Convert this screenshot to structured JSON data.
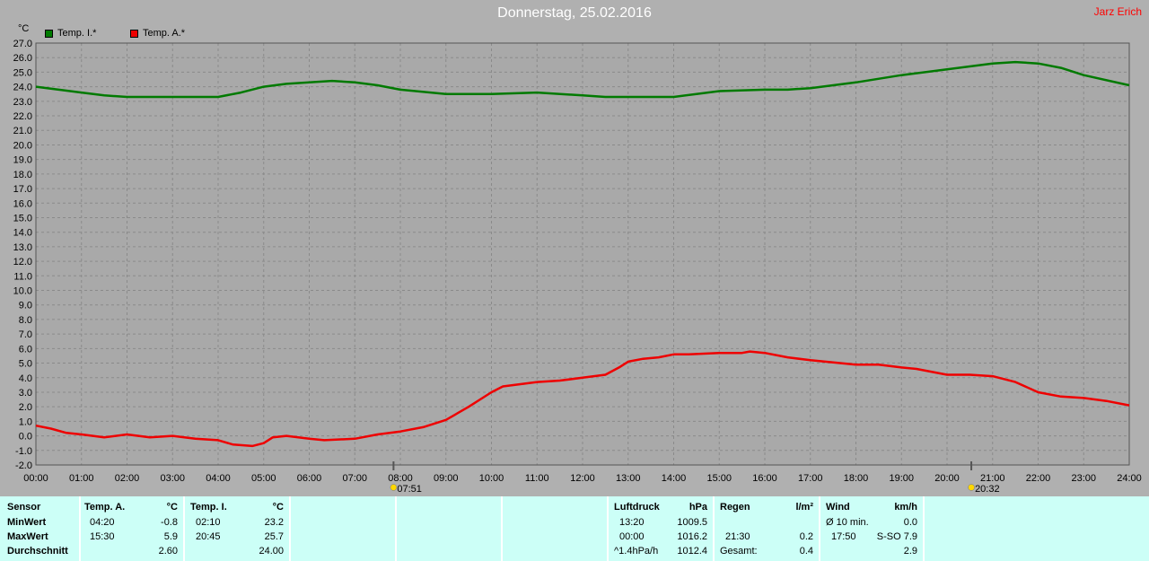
{
  "title": "Donnerstag, 25.02.2016",
  "author": "Jarz Erich",
  "unit": "°C",
  "colors": {
    "plot_bg": "#a9a9a9",
    "grid": "#8a8a8a",
    "inside": "#007a00",
    "outside": "#ee0000",
    "panel": "#ccfff7"
  },
  "legend": [
    {
      "label": "Temp. I.*",
      "color": "#007a00"
    },
    {
      "label": "Temp. A.*",
      "color": "#ee0000"
    }
  ],
  "sun": {
    "sunrise": "07:51",
    "sunset": "20:32"
  },
  "chart_data": {
    "type": "line",
    "xlabel": "",
    "ylabel": "°C",
    "xlim": [
      0,
      24
    ],
    "ylim": [
      -2,
      27
    ],
    "y_step": 1,
    "grid": true,
    "x_ticks": [
      "00:00",
      "01:00",
      "02:00",
      "03:00",
      "04:00",
      "05:00",
      "06:00",
      "07:00",
      "08:00",
      "09:00",
      "10:00",
      "11:00",
      "12:00",
      "13:00",
      "14:00",
      "15:00",
      "16:00",
      "17:00",
      "18:00",
      "19:00",
      "20:00",
      "21:00",
      "22:00",
      "23:00",
      "24:00"
    ],
    "y_ticks": [
      "27.0",
      "26.0",
      "25.0",
      "24.0",
      "23.0",
      "22.0",
      "21.0",
      "20.0",
      "19.0",
      "18.0",
      "17.0",
      "16.0",
      "15.0",
      "14.0",
      "13.0",
      "12.0",
      "11.0",
      "10.0",
      "9.0",
      "8.0",
      "7.0",
      "6.0",
      "5.0",
      "4.0",
      "3.0",
      "2.0",
      "1.0",
      "0.0",
      "-1.0",
      "-2.0"
    ],
    "series": [
      {
        "name": "Temp. I.*",
        "x": [
          0,
          1,
          1.5,
          2,
          3,
          4,
          4.5,
          5,
          5.5,
          6,
          6.5,
          7,
          7.5,
          8,
          9,
          10,
          11,
          12,
          12.5,
          13,
          14,
          14.5,
          15,
          16,
          16.5,
          17,
          18,
          19,
          20,
          21,
          21.5,
          22,
          22.5,
          23,
          24
        ],
        "y": [
          24.0,
          23.6,
          23.4,
          23.3,
          23.3,
          23.3,
          23.6,
          24.0,
          24.2,
          24.3,
          24.4,
          24.3,
          24.1,
          23.8,
          23.5,
          23.5,
          23.6,
          23.4,
          23.3,
          23.3,
          23.3,
          23.5,
          23.7,
          23.8,
          23.8,
          23.9,
          24.3,
          24.8,
          25.2,
          25.6,
          25.7,
          25.6,
          25.3,
          24.8,
          24.1
        ]
      },
      {
        "name": "Temp. A.*",
        "x": [
          0,
          0.33,
          0.67,
          1,
          1.5,
          2,
          2.5,
          3,
          3.5,
          4,
          4.33,
          4.75,
          5,
          5.2,
          5.5,
          6,
          6.33,
          7,
          7.5,
          8,
          8.5,
          9,
          9.5,
          10,
          10.25,
          10.5,
          11,
          11.5,
          12,
          12.5,
          12.8,
          13,
          13.33,
          13.67,
          14,
          14.33,
          15,
          15.5,
          15.67,
          16,
          16.5,
          17,
          18,
          18.5,
          19,
          19.33,
          20,
          20.5,
          21,
          21.5,
          22,
          22.5,
          23,
          23.5,
          24
        ],
        "y": [
          0.7,
          0.5,
          0.2,
          0.1,
          -0.1,
          0.1,
          -0.1,
          0.0,
          -0.2,
          -0.3,
          -0.6,
          -0.7,
          -0.5,
          -0.1,
          0.0,
          -0.2,
          -0.3,
          -0.2,
          0.1,
          0.3,
          0.6,
          1.1,
          2.0,
          3.0,
          3.4,
          3.5,
          3.7,
          3.8,
          4.0,
          4.2,
          4.7,
          5.1,
          5.3,
          5.4,
          5.6,
          5.6,
          5.7,
          5.7,
          5.8,
          5.7,
          5.4,
          5.2,
          4.9,
          4.9,
          4.7,
          4.6,
          4.2,
          4.2,
          4.1,
          3.7,
          3.0,
          2.7,
          2.6,
          2.4,
          2.1
        ]
      }
    ]
  },
  "panel": {
    "sensor": {
      "header": "Sensor",
      "rows": [
        "MinWert",
        "MaxWert",
        "Durchschnitt"
      ]
    },
    "temp_a": {
      "header": "Temp. A.",
      "unit": "°C",
      "min_time": "04:20",
      "min_val": "-0.8",
      "max_time": "15:30",
      "max_val": "5.9",
      "avg": "2.60"
    },
    "temp_i": {
      "header": "Temp. I.",
      "unit": "°C",
      "min_time": "02:10",
      "min_val": "23.2",
      "max_time": "20:45",
      "max_val": "25.7",
      "avg": "24.00"
    },
    "pressure": {
      "header": "Luftdruck",
      "unit": "hPa",
      "r1_time": "13:20",
      "r1_val": "1009.5",
      "r2_time": "00:00",
      "r2_val": "1016.2",
      "r3_label": "^1.4hPa/h",
      "r3_val": "1012.4"
    },
    "rain": {
      "header": "Regen",
      "unit": "l/m²",
      "r2_time": "21:30",
      "r2_val": "0.2",
      "r3_label": "Gesamt:",
      "r3_val": "0.4"
    },
    "wind": {
      "header": "Wind",
      "unit": "km/h",
      "r1_label": "Ø 10 min.",
      "r1_val": "0.0",
      "r2_time": "17:50",
      "r2_val": "S-SO 7.9",
      "r3_val": "2.9"
    }
  }
}
